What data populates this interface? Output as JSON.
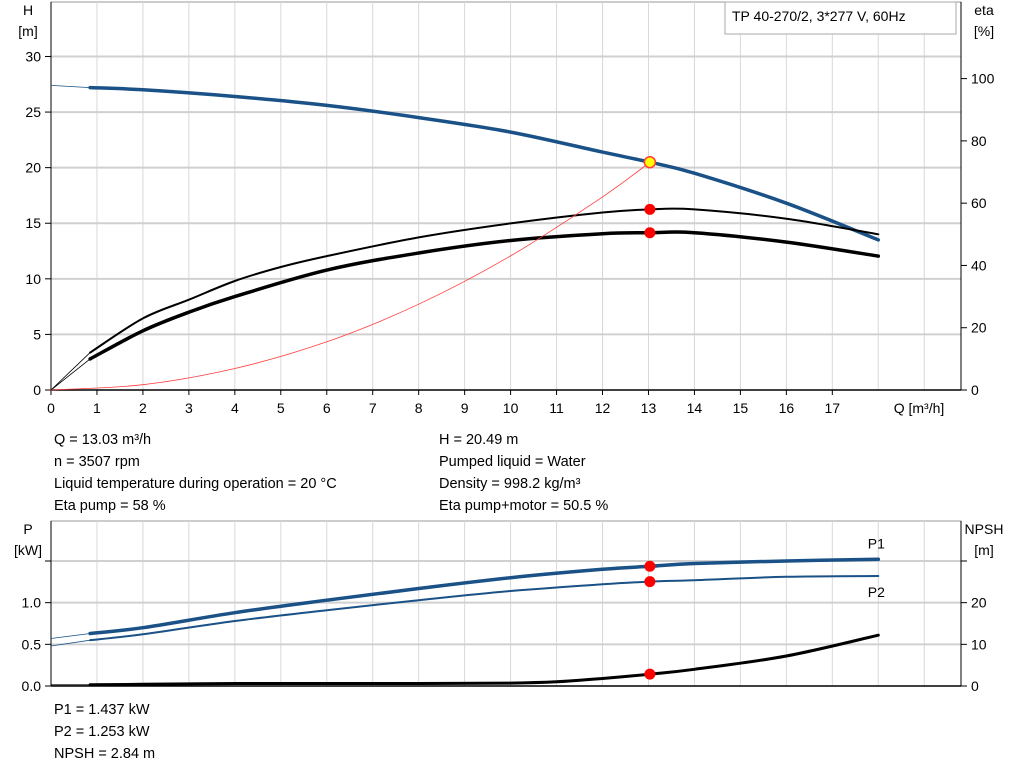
{
  "chart_data": [
    {
      "type": "line",
      "title": "TP 40-270/2, 3*277 V, 60Hz",
      "xlabel": "Q [m³/h]",
      "ylabel": "H\n[m]",
      "y2label": "eta\n[%]",
      "xlim": [
        0,
        19.8
      ],
      "ylim": [
        0,
        34.9
      ],
      "y2lim": [
        0,
        124.6
      ],
      "xticks": [
        "0",
        "1",
        "2",
        "3",
        "4",
        "5",
        "6",
        "7",
        "8",
        "9",
        "10",
        "11",
        "12",
        "13",
        "14",
        "15",
        "16",
        "17"
      ],
      "yticks": [
        "0",
        "5",
        "10",
        "15",
        "20",
        "25",
        "30"
      ],
      "y2ticks": [
        "0",
        "20",
        "40",
        "60",
        "80",
        "100"
      ],
      "grid": true,
      "series": [
        {
          "axis": "y",
          "color": "#1a5187",
          "x": [
            0,
            0.85,
            2,
            4,
            6,
            8,
            10,
            12,
            13.03,
            14,
            16,
            18
          ],
          "y": [
            27.4,
            27.2,
            27.0,
            26.4,
            25.6,
            24.5,
            23.2,
            21.4,
            20.49,
            19.5,
            16.8,
            13.5
          ]
        },
        {
          "axis": "y2",
          "color": "#000000",
          "x": [
            0,
            0.85,
            2,
            3,
            4,
            5,
            6,
            8,
            10,
            12,
            13.03,
            14,
            16,
            18
          ],
          "y": [
            0,
            12,
            23,
            29,
            35,
            39.5,
            43,
            49,
            53.5,
            57,
            58,
            58,
            55,
            50
          ]
        },
        {
          "axis": "y2",
          "color": "#000000",
          "x": [
            0,
            0.85,
            2,
            3,
            4,
            6,
            8,
            10,
            12,
            13.03,
            14,
            16,
            18
          ],
          "y": [
            0,
            10,
            19,
            25,
            30,
            38.5,
            44,
            48,
            50.2,
            50.5,
            50.5,
            47.5,
            43
          ]
        },
        {
          "axis": "y",
          "color": "#ff3b3b",
          "x": [
            0,
            2,
            4,
            6,
            8,
            10,
            12,
            13.03
          ],
          "y": [
            0,
            0.48,
            1.93,
            4.34,
            7.72,
            12.06,
            17.37,
            20.49
          ]
        }
      ],
      "operating_points": [
        {
          "axis": "y",
          "x": 13.03,
          "y": 20.49,
          "color": "#ffff00"
        },
        {
          "axis": "y2",
          "x": 13.03,
          "y": 58,
          "color": "#ff0000"
        },
        {
          "axis": "y2",
          "x": 13.03,
          "y": 50.5,
          "color": "#ff0000"
        }
      ]
    },
    {
      "type": "line",
      "ylabel": "P\n[kW]",
      "y2label": "NPSH\n[m]",
      "xlim": [
        0,
        19.8
      ],
      "ylim": [
        0,
        1.98
      ],
      "y2lim": [
        0,
        39.6
      ],
      "yticks": [
        "0.0",
        "0.5",
        "1.0",
        ""
      ],
      "y2ticks": [
        "0",
        "10",
        "20",
        ""
      ],
      "grid": true,
      "series": [
        {
          "name": "P1",
          "axis": "y",
          "color": "#1a5187",
          "x": [
            0,
            0.85,
            2,
            4,
            6,
            8,
            10,
            12,
            13.03,
            14,
            16,
            18
          ],
          "y": [
            0.57,
            0.63,
            0.7,
            0.88,
            1.03,
            1.17,
            1.3,
            1.4,
            1.437,
            1.47,
            1.5,
            1.52
          ]
        },
        {
          "name": "P2",
          "axis": "y",
          "color": "#1a5187",
          "x": [
            0,
            0.85,
            2,
            4,
            6,
            8,
            10,
            12,
            13.03,
            14,
            16,
            18
          ],
          "y": [
            0.48,
            0.55,
            0.62,
            0.78,
            0.91,
            1.03,
            1.14,
            1.22,
            1.253,
            1.27,
            1.31,
            1.32
          ]
        },
        {
          "axis": "y2",
          "color": "#000000",
          "x": [
            0,
            0.85,
            2,
            4,
            6,
            8,
            10,
            11,
            12,
            13.03,
            14,
            16,
            18
          ],
          "y": [
            0.3,
            0.3,
            0.4,
            0.6,
            0.6,
            0.6,
            0.7,
            1.0,
            1.8,
            2.84,
            4,
            7.2,
            12.2
          ]
        }
      ],
      "operating_points": [
        {
          "axis": "y",
          "x": 13.03,
          "y": 1.437,
          "color": "#ff0000"
        },
        {
          "axis": "y",
          "x": 13.03,
          "y": 1.253,
          "color": "#ff0000"
        },
        {
          "axis": "y2",
          "x": 13.03,
          "y": 2.84,
          "color": "#ff0000"
        }
      ]
    }
  ],
  "info_top_left": [
    "Q = 13.03 m³/h",
    "n = 3507 rpm",
    "Liquid temperature during operation = 20 °C",
    "Eta pump = 58 %"
  ],
  "info_top_right": [
    "H = 20.49 m",
    "Pumped liquid = Water",
    "Density = 998.2 kg/m³",
    "Eta pump+motor = 50.5 %"
  ],
  "info_bottom": [
    "P1 = 1.437 kW",
    "P2 = 1.253 kW",
    "NPSH = 2.84 m"
  ]
}
